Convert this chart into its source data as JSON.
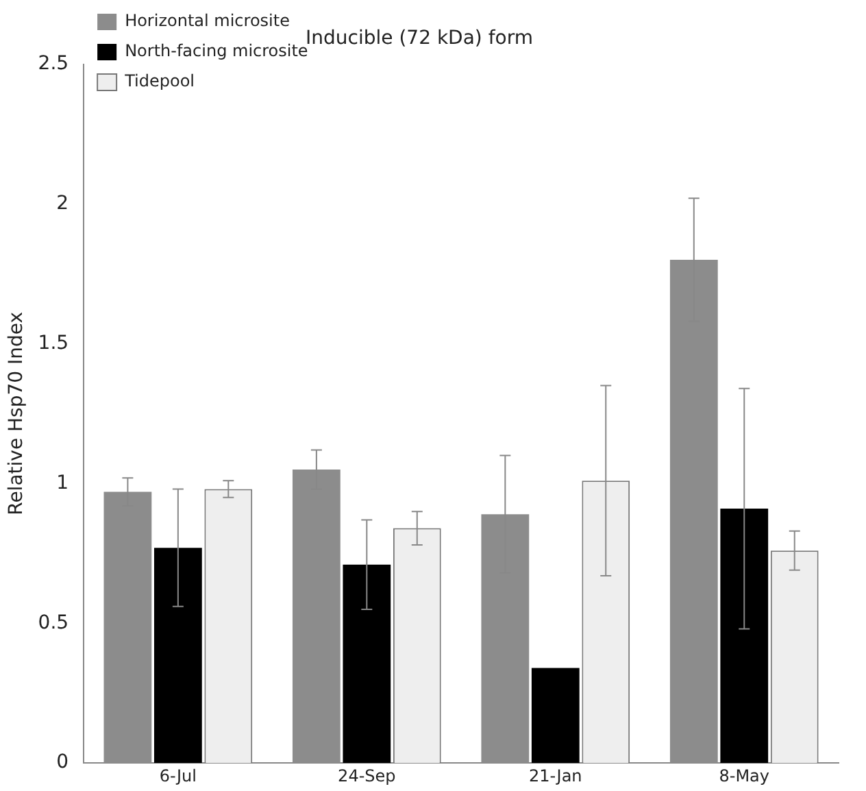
{
  "chart_data": {
    "type": "bar",
    "title": "Inducible (72 kDa) form",
    "ylabel": "Relative Hsp70 Index",
    "categories": [
      "6-Jul",
      "24-Sep",
      "21-Jan",
      "8-May"
    ],
    "series": [
      {
        "name": "Horizontal microsite",
        "color": "#8c8c8c",
        "values": [
          0.97,
          1.05,
          0.89,
          1.8
        ],
        "errors": [
          0.05,
          0.07,
          0.21,
          0.22
        ]
      },
      {
        "name": "North-facing microsite",
        "color": "#000000",
        "values": [
          0.77,
          0.71,
          0.34,
          0.91
        ],
        "errors": [
          0.21,
          0.16,
          null,
          0.43
        ]
      },
      {
        "name": "Tidepool",
        "color": "#eeeeee",
        "values": [
          0.98,
          0.84,
          1.01,
          0.76
        ],
        "errors": [
          0.03,
          0.06,
          0.34,
          0.07
        ]
      }
    ],
    "ylim": [
      0,
      2.5
    ],
    "yticks": [
      0,
      0.5,
      1,
      1.5,
      2,
      2.5
    ],
    "grid": false,
    "legend": "top left"
  }
}
